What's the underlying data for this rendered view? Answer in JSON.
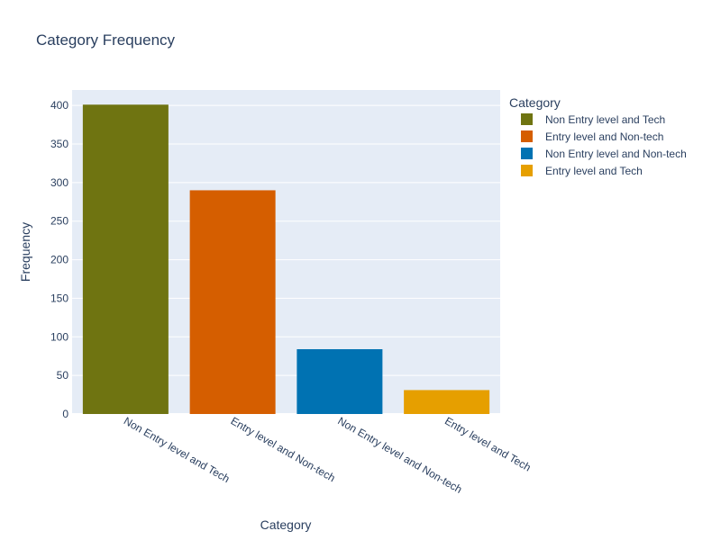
{
  "chart_data": {
    "type": "bar",
    "title": "Category Frequency",
    "xlabel": "Category",
    "ylabel": "Frequency",
    "ylim": [
      0,
      420
    ],
    "yticks": [
      0,
      50,
      100,
      150,
      200,
      250,
      300,
      350,
      400
    ],
    "categories": [
      "Non Entry level and Tech",
      "Entry level and Non-tech",
      "Non Entry level and Non-tech",
      "Entry level and Tech"
    ],
    "values": [
      401,
      290,
      84,
      31
    ],
    "colors": [
      "#6f7411",
      "#d55e00",
      "#0072b2",
      "#e69f00"
    ],
    "grid": true,
    "legend": {
      "title": "Category",
      "placement": "right",
      "entries": [
        "Non Entry level and Tech",
        "Entry level and Non-tech",
        "Non Entry level and Non-tech",
        "Entry level and Tech"
      ]
    }
  }
}
